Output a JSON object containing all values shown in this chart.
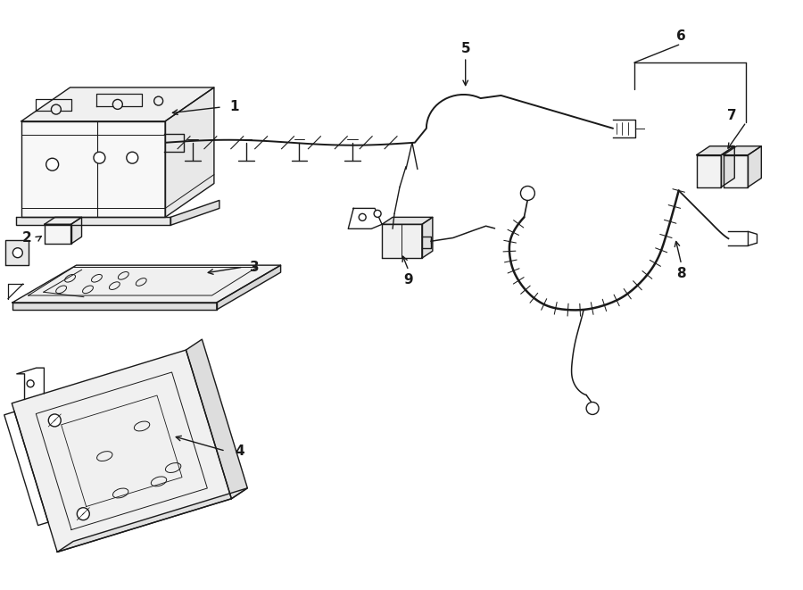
{
  "bg_color": "#ffffff",
  "line_color": "#1a1a1a",
  "lw": 1.0,
  "fig_w": 9.0,
  "fig_h": 6.61,
  "dpi": 100,
  "xlim": [
    0,
    9.0
  ],
  "ylim": [
    0,
    6.61
  ]
}
